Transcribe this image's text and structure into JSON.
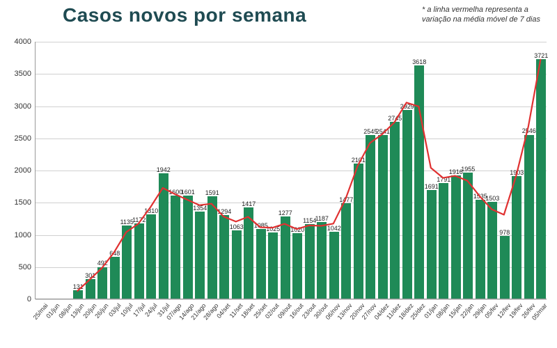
{
  "title": "Casos novos por semana",
  "title_fontsize": 28,
  "title_color": "#1f4b52",
  "footnote": "* a linha vermelha representa a variação na média móvel de 7 dias",
  "footnote_fontsize": 11,
  "footnote_color": "#333333",
  "chart": {
    "type": "bar+line",
    "background_color": "#ffffff",
    "grid_color": "#d0d0d0",
    "axis_color": "#999999",
    "bar_color": "#1f8a57",
    "bar_width_ratio": 0.78,
    "line_color": "#e03131",
    "line_width": 2.2,
    "ylim": [
      0,
      4000
    ],
    "ytick_step": 500,
    "categories": [
      "25/mai",
      "01/jun",
      "08/jun",
      "13/jun",
      "20/jun",
      "26/jun",
      "03/jul",
      "10/jul",
      "17/jul",
      "24/jul",
      "31/jul",
      "07/ago",
      "14/ago",
      "21/ago",
      "28/ago",
      "04/set",
      "11/set",
      "18/set",
      "25/set",
      "02/out",
      "09/out",
      "16/out",
      "23/out",
      "30/out",
      "06/nov",
      "13/nov",
      "20/nov",
      "27/nov",
      "04/dez",
      "11/dez",
      "18/dez",
      "25/dez",
      "01/jan",
      "08/jan",
      "15/jan",
      "22/jan",
      "29/jan",
      "05/fev",
      "12/fev",
      "19/fev",
      "26/fev",
      "05/mar"
    ],
    "values": [
      0,
      0,
      0,
      131,
      301,
      492,
      648,
      1135,
      1172,
      1310,
      1942,
      1600,
      1601,
      1354,
      1591,
      1294,
      1063,
      1417,
      1085,
      1025,
      1277,
      1020,
      1154,
      1187,
      1042,
      1477,
      2101,
      2545,
      2541,
      2745,
      2929,
      3618,
      1691,
      1791,
      1916,
      1955,
      1535,
      1503,
      978,
      1903,
      2546,
      3721
    ],
    "no_bar_indices": [
      0,
      1,
      2
    ],
    "line_threshold": 130,
    "bar_label_fontsize": 9,
    "tick_fontsize": 11
  }
}
